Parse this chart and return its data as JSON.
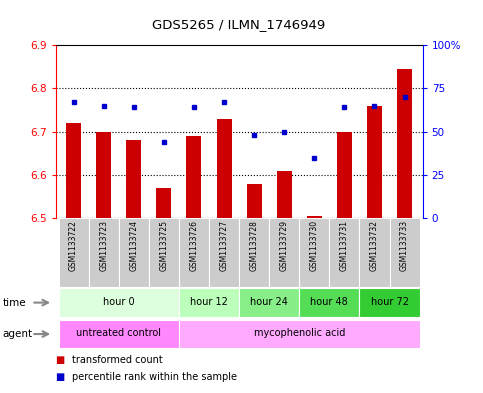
{
  "title": "GDS5265 / ILMN_1746949",
  "samples": [
    "GSM1133722",
    "GSM1133723",
    "GSM1133724",
    "GSM1133725",
    "GSM1133726",
    "GSM1133727",
    "GSM1133728",
    "GSM1133729",
    "GSM1133730",
    "GSM1133731",
    "GSM1133732",
    "GSM1133733"
  ],
  "bar_values": [
    6.72,
    6.7,
    6.68,
    6.57,
    6.69,
    6.73,
    6.58,
    6.61,
    6.505,
    6.7,
    6.76,
    6.845
  ],
  "bar_base": 6.5,
  "dot_values": [
    67,
    65,
    64,
    44,
    64,
    67,
    48,
    50,
    35,
    64,
    65,
    70
  ],
  "ylim": [
    6.5,
    6.9
  ],
  "y2lim": [
    0,
    100
  ],
  "yticks": [
    6.5,
    6.6,
    6.7,
    6.8,
    6.9
  ],
  "y2ticks": [
    0,
    25,
    50,
    75,
    100
  ],
  "y2ticklabels": [
    "0",
    "25",
    "50",
    "75",
    "100%"
  ],
  "bar_color": "#cc0000",
  "dot_color": "#0000cc",
  "time_groups": [
    {
      "label": "hour 0",
      "start": 0,
      "end": 4,
      "color": "#ddffdd"
    },
    {
      "label": "hour 12",
      "start": 4,
      "end": 6,
      "color": "#bbffbb"
    },
    {
      "label": "hour 24",
      "start": 6,
      "end": 8,
      "color": "#88ee88"
    },
    {
      "label": "hour 48",
      "start": 8,
      "end": 10,
      "color": "#55dd55"
    },
    {
      "label": "hour 72",
      "start": 10,
      "end": 12,
      "color": "#33cc33"
    }
  ],
  "agent_groups": [
    {
      "label": "untreated control",
      "start": 0,
      "end": 4,
      "color": "#ff88ff"
    },
    {
      "label": "mycophenolic acid",
      "start": 4,
      "end": 12,
      "color": "#ffaaff"
    }
  ],
  "legend_items": [
    {
      "label": "transformed count",
      "color": "#cc0000"
    },
    {
      "label": "percentile rank within the sample",
      "color": "#0000cc"
    }
  ],
  "sample_bg_color": "#cccccc",
  "bar_width": 0.5,
  "arrow_color": "#888888"
}
